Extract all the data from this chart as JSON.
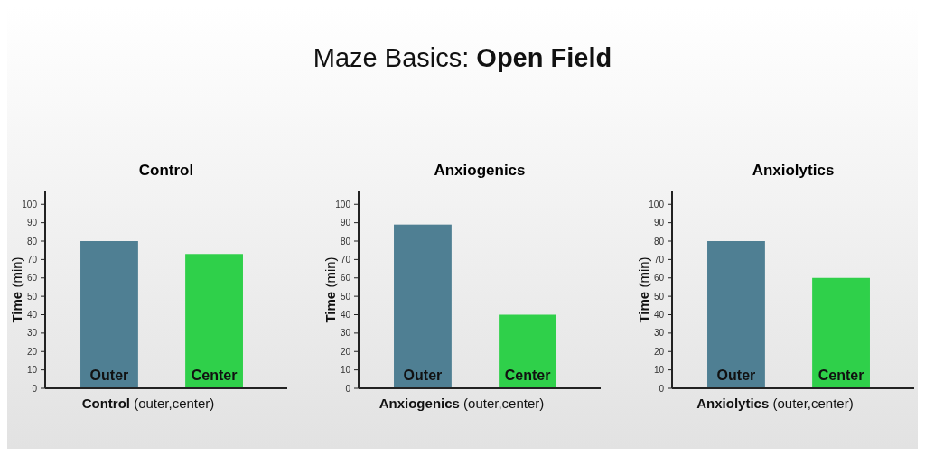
{
  "chart_data": [
    {
      "type": "bar",
      "title": "Control",
      "xlabel": "Control (outer,center)",
      "ylabel": "Time (min)",
      "annotations": [
        "Maze Basics: Open Field"
      ],
      "categories": [
        "Outer",
        "Center"
      ],
      "values": [
        80,
        73
      ],
      "colors": [
        "#4f7f93",
        "#2fd04a"
      ],
      "ylim": [
        0,
        107
      ],
      "yticks": [
        0,
        10,
        20,
        30,
        40,
        50,
        60,
        70,
        80,
        90,
        100
      ]
    },
    {
      "type": "bar",
      "title": "Anxiogenics",
      "xlabel": "Anxiogenics (outer,center)",
      "ylabel": "Time (min)",
      "categories": [
        "Outer",
        "Center"
      ],
      "values": [
        89,
        40
      ],
      "colors": [
        "#4f7f93",
        "#2fd04a"
      ],
      "ylim": [
        0,
        107
      ],
      "yticks": [
        0,
        10,
        20,
        30,
        40,
        50,
        60,
        70,
        80,
        90,
        100
      ]
    },
    {
      "type": "bar",
      "title": "Anxiolytics",
      "xlabel": "Anxiolytics (outer,center)",
      "ylabel": "Time (min)",
      "categories": [
        "Outer",
        "Center"
      ],
      "values": [
        80,
        60
      ],
      "colors": [
        "#4f7f93",
        "#2fd04a"
      ],
      "ylim": [
        0,
        107
      ],
      "yticks": [
        0,
        10,
        20,
        30,
        40,
        50,
        60,
        70,
        80,
        90,
        100
      ]
    }
  ]
}
